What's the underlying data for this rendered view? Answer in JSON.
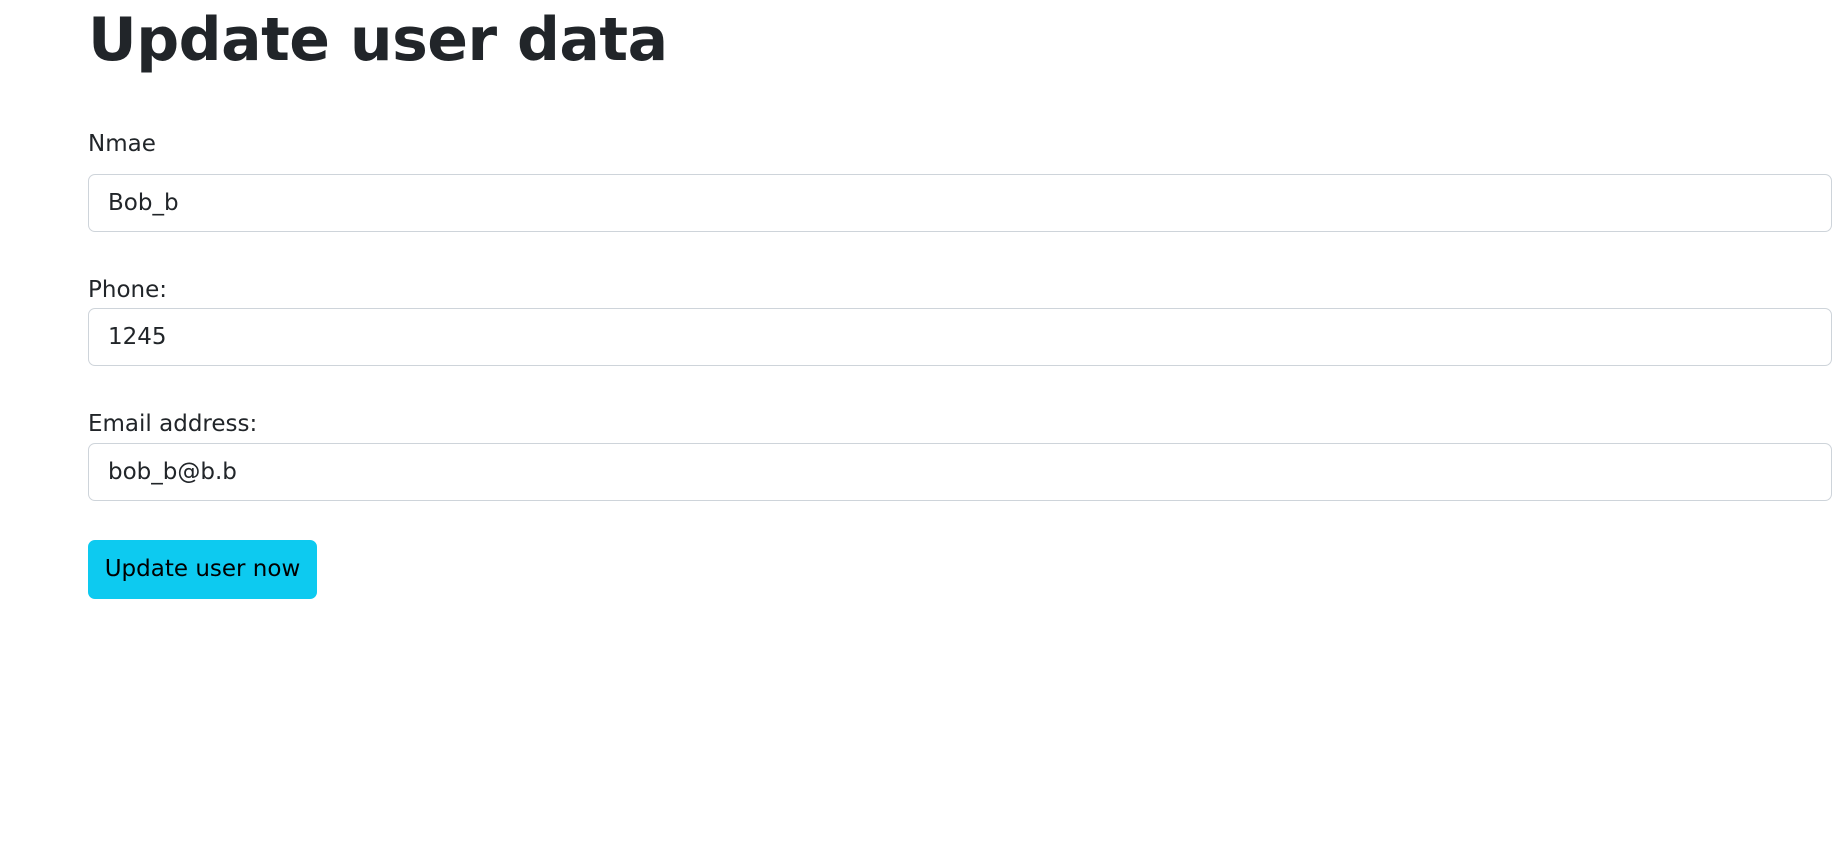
{
  "page": {
    "title": "Update user data"
  },
  "form": {
    "name": {
      "label": "Nmae",
      "value": "Bob_b"
    },
    "phone": {
      "label": "Phone:",
      "value": "1245"
    },
    "email": {
      "label": "Email address:",
      "value": "bob_b@b.b"
    },
    "submit_label": "Update user now"
  },
  "colors": {
    "button_background": "#0dcaf0",
    "text": "#212529",
    "input_border": "#ced4da"
  }
}
